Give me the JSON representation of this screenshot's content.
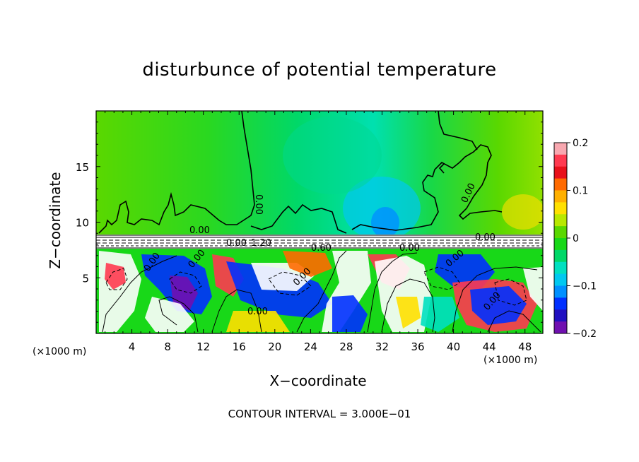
{
  "chart_data": {
    "type": "heatmap",
    "title": "disturbunce of potential temperature",
    "xlabel": "X−coordinate",
    "ylabel": "Z−coordinate",
    "x_unit_note": "(×1000 m)",
    "note": "CONTOUR INTERVAL = 3.000E−01",
    "xlim": [
      0,
      50
    ],
    "ylim": [
      0,
      20
    ],
    "x_ticks": [
      "4",
      "8",
      "12",
      "16",
      "20",
      "24",
      "28",
      "32",
      "36",
      "40",
      "44",
      "48"
    ],
    "x_tick_values": [
      4,
      8,
      12,
      16,
      20,
      24,
      28,
      32,
      36,
      40,
      44,
      48
    ],
    "y_ticks": [
      "5",
      "10",
      "15"
    ],
    "y_tick_values": [
      5,
      10,
      15
    ],
    "colorbar": {
      "range": [
        -0.2,
        0.2
      ],
      "tick_labels": [
        "0.2",
        "0.1",
        "0",
        "−0.1",
        "−0.2"
      ],
      "tick_values": [
        0.2,
        0.1,
        0,
        -0.1,
        -0.2
      ],
      "colors": [
        "#f8a8b0",
        "#ff3a50",
        "#e8101a",
        "#ff6a00",
        "#ffb000",
        "#ffe000",
        "#b8e800",
        "#5ad800",
        "#18d818",
        "#00d868",
        "#00e0c0",
        "#00c8f0",
        "#0090ff",
        "#0030ff",
        "#2010c0",
        "#7010b0"
      ]
    },
    "contour_labels": [
      "0.00",
      "0.00",
      "0.00",
      "0.00",
      "0.00",
      "0.00",
      "0.00",
      "0.00",
      "0.00",
      "0.00",
      "0.00",
      "1.20",
      "0.60",
      "0.00"
    ]
  }
}
